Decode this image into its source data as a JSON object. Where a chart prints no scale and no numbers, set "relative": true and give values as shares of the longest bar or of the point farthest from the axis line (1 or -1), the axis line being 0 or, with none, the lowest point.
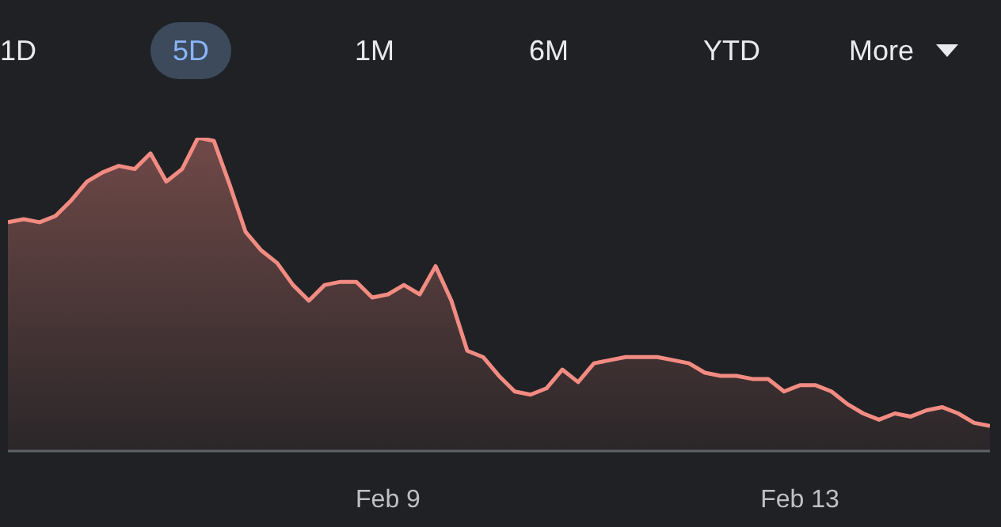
{
  "chart_data": {
    "type": "area",
    "relative": true,
    "annotations": [
      "1D",
      "5D",
      "1M",
      "6M",
      "YTD",
      "More"
    ],
    "categories": [
      null,
      null,
      null,
      null,
      null,
      null,
      null,
      null,
      null,
      null,
      null,
      null,
      null,
      null,
      null,
      null,
      null,
      null,
      null,
      null,
      null,
      null,
      null,
      null,
      "Feb 9",
      null,
      null,
      null,
      null,
      null,
      null,
      null,
      null,
      null,
      null,
      null,
      null,
      null,
      null,
      null,
      null,
      null,
      null,
      null,
      null,
      null,
      null,
      null,
      null,
      null,
      "Feb 13",
      null,
      null,
      null,
      null,
      null,
      null,
      null,
      null,
      null,
      null,
      null,
      null
    ],
    "series": [
      {
        "color": "#f28b82",
        "values": [
          0.73,
          0.74,
          0.73,
          0.75,
          0.8,
          0.86,
          0.89,
          0.91,
          0.9,
          0.95,
          0.86,
          0.9,
          1.0,
          0.99,
          0.85,
          0.7,
          0.64,
          0.6,
          0.53,
          0.48,
          0.53,
          0.54,
          0.54,
          0.49,
          0.5,
          0.53,
          0.5,
          0.59,
          0.48,
          0.32,
          0.3,
          0.24,
          0.19,
          0.18,
          0.2,
          0.26,
          0.22,
          0.28,
          0.29,
          0.3,
          0.3,
          0.3,
          0.29,
          0.28,
          0.25,
          0.24,
          0.24,
          0.23,
          0.23,
          0.19,
          0.21,
          0.21,
          0.19,
          0.15,
          0.12,
          0.1,
          0.12,
          0.11,
          0.13,
          0.14,
          0.12,
          0.09,
          0.08
        ]
      }
    ]
  }
}
